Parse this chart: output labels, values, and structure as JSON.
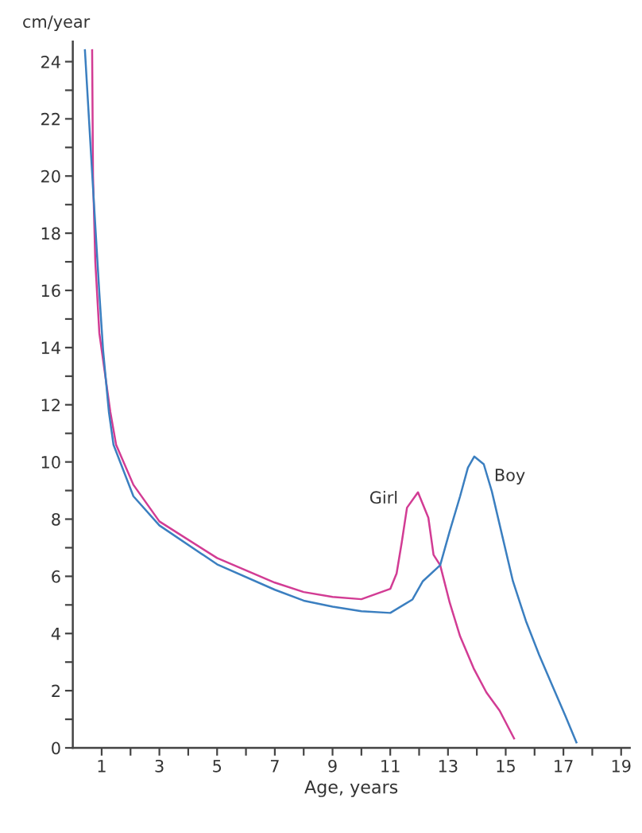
{
  "chart_data": {
    "type": "line",
    "ylabel": "cm/year",
    "xlabel": "Age, years",
    "xlim": [
      0,
      19.3
    ],
    "ylim": [
      0,
      24.7
    ],
    "xticks": [
      1,
      {
        "value": 2,
        "label": null
      },
      3,
      {
        "value": 4,
        "label": null
      },
      5,
      {
        "value": 6,
        "label": null
      },
      7,
      {
        "value": 8,
        "label": null
      },
      9,
      {
        "value": 10,
        "label": null
      },
      11,
      {
        "value": 12,
        "label": null
      },
      13,
      {
        "value": 14,
        "label": null
      },
      15,
      {
        "value": 16,
        "label": null
      },
      17,
      {
        "value": 18,
        "label": null
      },
      19
    ],
    "yticks": [
      0,
      {
        "value": 1,
        "label": null
      },
      2,
      {
        "value": 3,
        "label": null
      },
      4,
      {
        "value": 5,
        "label": null
      },
      6,
      {
        "value": 7,
        "label": null
      },
      8,
      {
        "value": 9,
        "label": null
      },
      10,
      {
        "value": 11,
        "label": null
      },
      12,
      {
        "value": 13,
        "label": null
      },
      14,
      {
        "value": 15,
        "label": null
      },
      16,
      {
        "value": 17,
        "label": null
      },
      18,
      {
        "value": 19,
        "label": null
      },
      20,
      {
        "value": 21,
        "label": null
      },
      22,
      {
        "value": 23,
        "label": null
      },
      24
    ],
    "grid": false,
    "legend": false,
    "marker": "none",
    "line_style": "solid",
    "series": [
      {
        "name": "Girl",
        "color": "#d23c94",
        "x": [
          0.67,
          0.7,
          0.78,
          0.92,
          1.3,
          1.5,
          2.1,
          3,
          5,
          7,
          8,
          9,
          10,
          11,
          11.22,
          11.4,
          11.58,
          11.96,
          12.32,
          12.5,
          12.73,
          13.06,
          13.42,
          13.89,
          14.33,
          14.79,
          15.29
        ],
        "values": [
          24.4,
          20,
          17,
          14.5,
          11.75,
          10.6,
          9.2,
          7.92,
          6.64,
          5.78,
          5.45,
          5.28,
          5.2,
          5.56,
          6.1,
          7.2,
          8.4,
          8.94,
          8.05,
          6.75,
          6.39,
          5.08,
          3.9,
          2.78,
          1.94,
          1.3,
          0.33
        ]
      },
      {
        "name": "Boy",
        "color": "#3b7fc0",
        "x": [
          0.42,
          0.7,
          0.92,
          1.05,
          1.25,
          1.41,
          2.1,
          3,
          5,
          7,
          8,
          9,
          10,
          11,
          11.77,
          12.13,
          12.73,
          13.06,
          13.42,
          13.69,
          13.91,
          14.24,
          14.52,
          14.88,
          15.25,
          15.7,
          16.16,
          16.63,
          17.07,
          17.45
        ],
        "values": [
          24.4,
          19.6,
          15.9,
          13.9,
          11.75,
          10.6,
          8.8,
          7.78,
          6.42,
          5.53,
          5.15,
          4.94,
          4.78,
          4.72,
          5.19,
          5.83,
          6.39,
          7.58,
          8.8,
          9.8,
          10.19,
          9.92,
          8.97,
          7.42,
          5.83,
          4.44,
          3.25,
          2.14,
          1.11,
          0.19
        ]
      }
    ]
  }
}
